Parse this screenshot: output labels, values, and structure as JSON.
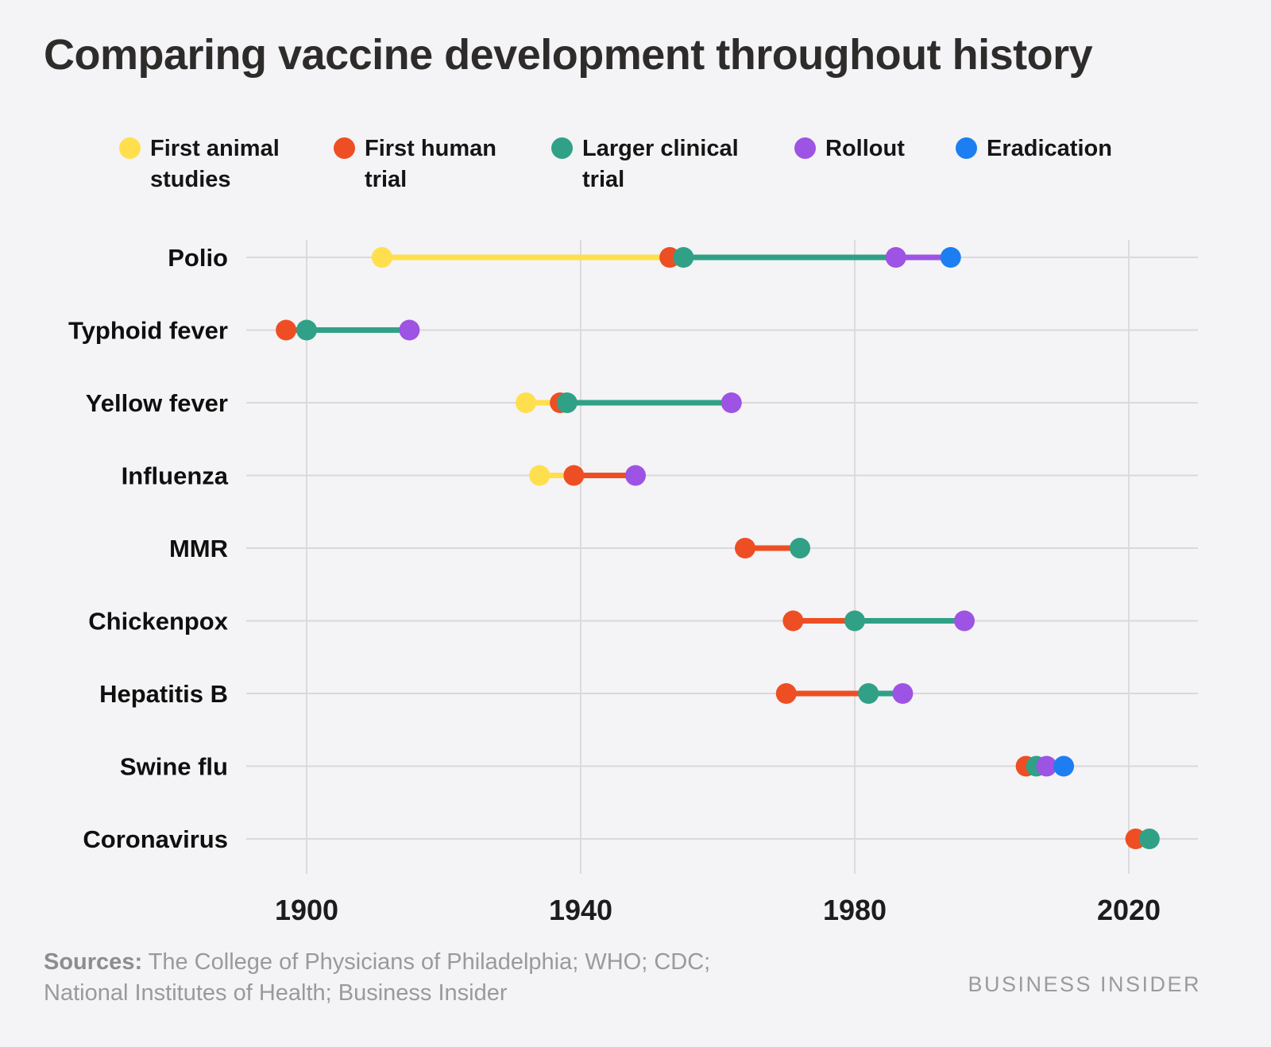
{
  "title": "Comparing vaccine development throughout history",
  "chart_data": {
    "type": "scatter",
    "subtype": "timeline-dot-plot",
    "title": "Comparing vaccine development throughout history",
    "xlabel": "",
    "ylabel": "",
    "grid": true,
    "legend_position": "top",
    "x_axis": {
      "ticks": [
        1900,
        1940,
        1980,
        2020
      ],
      "range": [
        1891,
        2030
      ],
      "unit": "year"
    },
    "milestones": [
      {
        "key": "animal",
        "label": "First animal studies",
        "color": "#ffdf4d"
      },
      {
        "key": "human",
        "label": "First human trial",
        "color": "#ee4e23"
      },
      {
        "key": "larger",
        "label": "Larger clinical trial",
        "color": "#30a186"
      },
      {
        "key": "rollout",
        "label": "Rollout",
        "color": "#9d53e3"
      },
      {
        "key": "eradication",
        "label": "Eradication",
        "color": "#1d7ef2"
      }
    ],
    "rows": [
      {
        "disease": "Polio",
        "events": {
          "animal": 1911,
          "human": 1953,
          "larger": 1955,
          "rollout": 1986,
          "eradication": 1994
        }
      },
      {
        "disease": "Typhoid fever",
        "events": {
          "human": 1897,
          "larger": 1900,
          "rollout": 1915
        }
      },
      {
        "disease": "Yellow fever",
        "events": {
          "animal": 1932,
          "human": 1937,
          "larger": 1938,
          "rollout": 1962
        }
      },
      {
        "disease": "Influenza",
        "events": {
          "animal": 1934,
          "human": 1939,
          "rollout": 1948
        }
      },
      {
        "disease": "MMR",
        "events": {
          "human": 1964,
          "larger": 1972
        }
      },
      {
        "disease": "Chickenpox",
        "events": {
          "human": 1971,
          "larger": 1980,
          "rollout": 1996
        }
      },
      {
        "disease": "Hepatitis B",
        "events": {
          "human": 1970,
          "larger": 1982,
          "rollout": 1987
        }
      },
      {
        "disease": "Swine flu",
        "events": {
          "human": 2005,
          "larger": 2006.5,
          "rollout": 2008,
          "eradication": 2010.5
        }
      },
      {
        "disease": "Coronavirus",
        "events": {
          "human": 2021,
          "larger": 2023
        }
      }
    ]
  },
  "footer": {
    "sources_label": "Sources:",
    "sources_line1": "The College of Physicians of Philadelphia; WHO; CDC;",
    "sources_line2": "National Institutes of Health; Business Insider",
    "brand": "BUSINESS INSIDER"
  }
}
